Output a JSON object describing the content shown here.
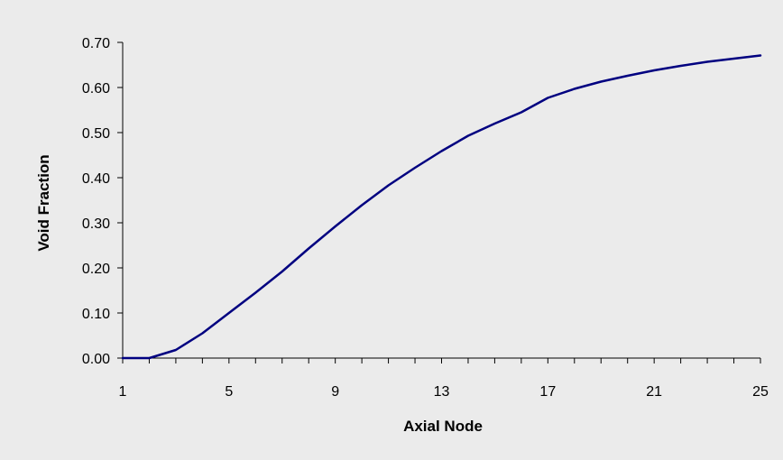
{
  "colors": {
    "background": "#ebebeb",
    "line": "#000080",
    "axis": "#000000"
  },
  "chart_data": {
    "type": "line",
    "title": "",
    "xlabel": "Axial Node",
    "ylabel": "Void Fraction",
    "xlim": [
      1,
      25
    ],
    "ylim": [
      0,
      0.7
    ],
    "xticks": [
      "1",
      "5",
      "9",
      "13",
      "17",
      "21",
      "25"
    ],
    "yticks": [
      "0.00",
      "0.10",
      "0.20",
      "0.30",
      "0.40",
      "0.50",
      "0.60",
      "0.70"
    ],
    "grid": false,
    "legend": "none",
    "series": [
      {
        "x": [
          1,
          2,
          3,
          4,
          5,
          6,
          7,
          8,
          9,
          10,
          11,
          12,
          13,
          14,
          15,
          16,
          17,
          18,
          19,
          20,
          21,
          22,
          23,
          24,
          25
        ],
        "y": [
          0.0,
          0.0,
          0.018,
          0.055,
          0.1,
          0.145,
          0.192,
          0.243,
          0.292,
          0.339,
          0.383,
          0.422,
          0.459,
          0.493,
          0.52,
          0.545,
          0.577,
          0.597,
          0.613,
          0.626,
          0.638,
          0.648,
          0.657,
          0.664,
          0.671
        ]
      }
    ]
  }
}
